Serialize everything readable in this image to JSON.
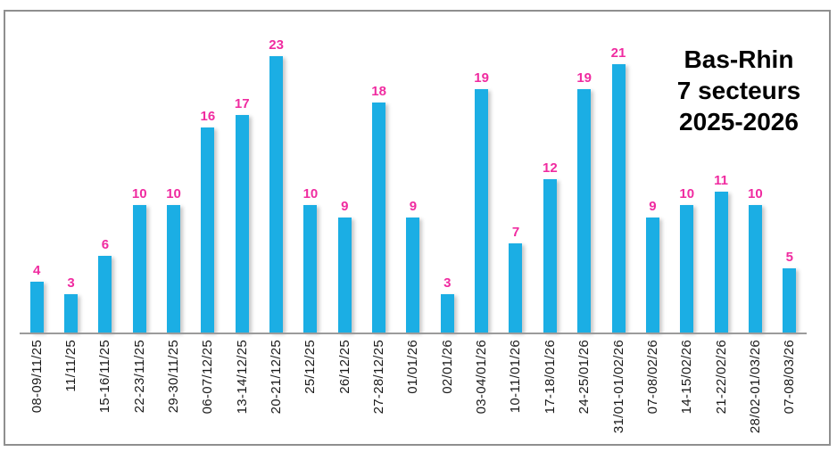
{
  "title": {
    "lines": [
      "Bas-Rhin",
      "7 secteurs",
      "2025-2026"
    ]
  },
  "colors": {
    "bar": "#1BAEE4",
    "value_label": "#F02BA0",
    "axis_line": "#9B9B9B",
    "frame_border": "#8F8F8F",
    "axis_text": "#1A1A1A",
    "title": "#000000"
  },
  "chart_data": {
    "type": "bar",
    "title": "Bas-Rhin 7 secteurs 2025-2026",
    "categories": [
      "08-09/11/25",
      "11/11/25",
      "15-16/11/25",
      "22-23/11/25",
      "29-30/11/25",
      "06-07/12/25",
      "13-14/12/25",
      "20-21/12/25",
      "25/12/25",
      "26/12/25",
      "27-28/12/25",
      "01/01/26",
      "02/01/26",
      "03-04/01/26",
      "10-11/01/26",
      "17-18/01/26",
      "24-25/01/26",
      "31/01-01/02/26",
      "07-08/02/26",
      "14-15/02/26",
      "21-22/02/26",
      "28/02-01/03/26",
      "07-08/03/26"
    ],
    "values": [
      4,
      3,
      6,
      10,
      10,
      16,
      17,
      23,
      10,
      9,
      18,
      9,
      3,
      19,
      7,
      12,
      19,
      21,
      9,
      10,
      11,
      10,
      5
    ],
    "xlabel": "",
    "ylabel": "",
    "ylim": [
      0,
      23
    ],
    "grid": false,
    "legend": false,
    "data_labels": true,
    "x_label_rotation_deg": 90,
    "bar_color": "#1BAEE4",
    "value_label_color": "#F02BA0"
  }
}
